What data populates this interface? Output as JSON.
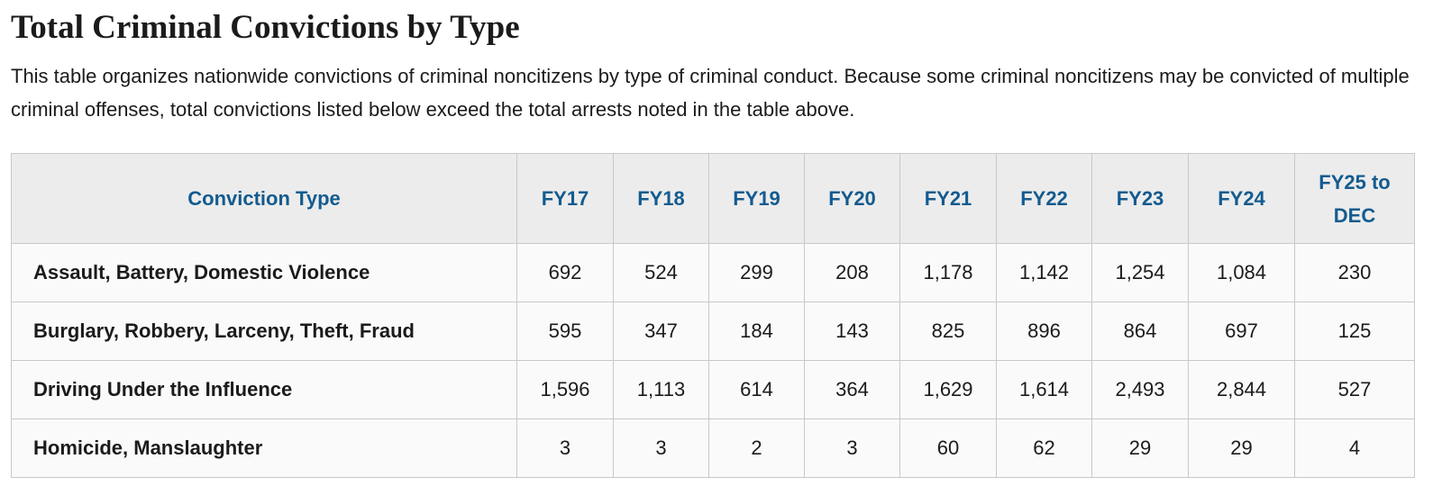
{
  "header": {
    "title": "Total Criminal Convictions by Type",
    "description": "This table organizes nationwide convictions of criminal noncitizens by type of criminal conduct. Because some criminal noncitizens may be convicted of multiple criminal offenses, total convictions listed below exceed the total arrests noted in the table above."
  },
  "table": {
    "columns": [
      "Conviction Type",
      "FY17",
      "FY18",
      "FY19",
      "FY20",
      "FY21",
      "FY22",
      "FY23",
      "FY24",
      "FY25 to DEC"
    ],
    "rows": [
      [
        "Assault, Battery, Domestic Violence",
        "692",
        "524",
        "299",
        "208",
        "1,178",
        "1,142",
        "1,254",
        "1,084",
        "230"
      ],
      [
        "Burglary, Robbery, Larceny, Theft, Fraud",
        "595",
        "347",
        "184",
        "143",
        "825",
        "896",
        "864",
        "697",
        "125"
      ],
      [
        "Driving Under the Influence",
        "1,596",
        "1,113",
        "614",
        "364",
        "1,629",
        "1,614",
        "2,493",
        "2,844",
        "527"
      ],
      [
        "Homicide, Manslaughter",
        "3",
        "3",
        "2",
        "3",
        "60",
        "62",
        "29",
        "29",
        "4"
      ]
    ]
  }
}
